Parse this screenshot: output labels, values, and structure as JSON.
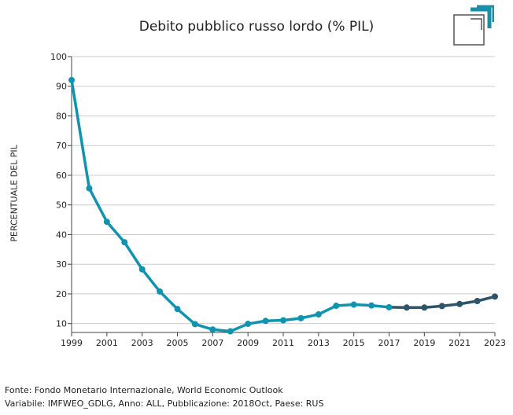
{
  "colors": {
    "series_historic": "#1093ae",
    "series_forecast": "#2d5468",
    "grid": "#cccccc",
    "axis": "#444444",
    "logo": "#1a8fa8"
  },
  "logo": {
    "icon": "corner-brackets-logo"
  },
  "chart_data": {
    "type": "line",
    "title": "Debito pubblico russo lordo (% PIL)",
    "ylabel": "PERCENTUALE DEL PIL",
    "xlabel": "",
    "xlim": [
      1999,
      2023
    ],
    "ylim": [
      7,
      100
    ],
    "yticks": [
      10,
      20,
      30,
      40,
      50,
      60,
      70,
      80,
      90,
      100
    ],
    "xticks": [
      1999,
      2001,
      2003,
      2005,
      2007,
      2009,
      2011,
      2013,
      2015,
      2017,
      2019,
      2021,
      2023
    ],
    "grid": "horizontal",
    "legend": "none",
    "x": [
      1999,
      2000,
      2001,
      2002,
      2003,
      2004,
      2005,
      2006,
      2007,
      2008,
      2009,
      2010,
      2011,
      2012,
      2013,
      2014,
      2015,
      2016,
      2017,
      2018,
      2019,
      2020,
      2021,
      2022,
      2023
    ],
    "series": [
      {
        "values": [
          92.1,
          55.6,
          44.3,
          37.4,
          28.3,
          20.8,
          14.9,
          9.8,
          8.0,
          7.4,
          9.9,
          10.9,
          11.1,
          11.8,
          13.1,
          16.0,
          16.4,
          16.1,
          15.5,
          15.4,
          15.4,
          15.9,
          16.6,
          17.6,
          19.1
        ]
      }
    ],
    "forecast_from": 2017
  },
  "footer": {
    "source": "Fonte: Fondo Monetario Internazionale, World Economic Outlook",
    "meta": "Variabile: IMFWEO_GDLG, Anno: ALL, Pubblicazione: 2018Oct, Paese: RUS"
  }
}
